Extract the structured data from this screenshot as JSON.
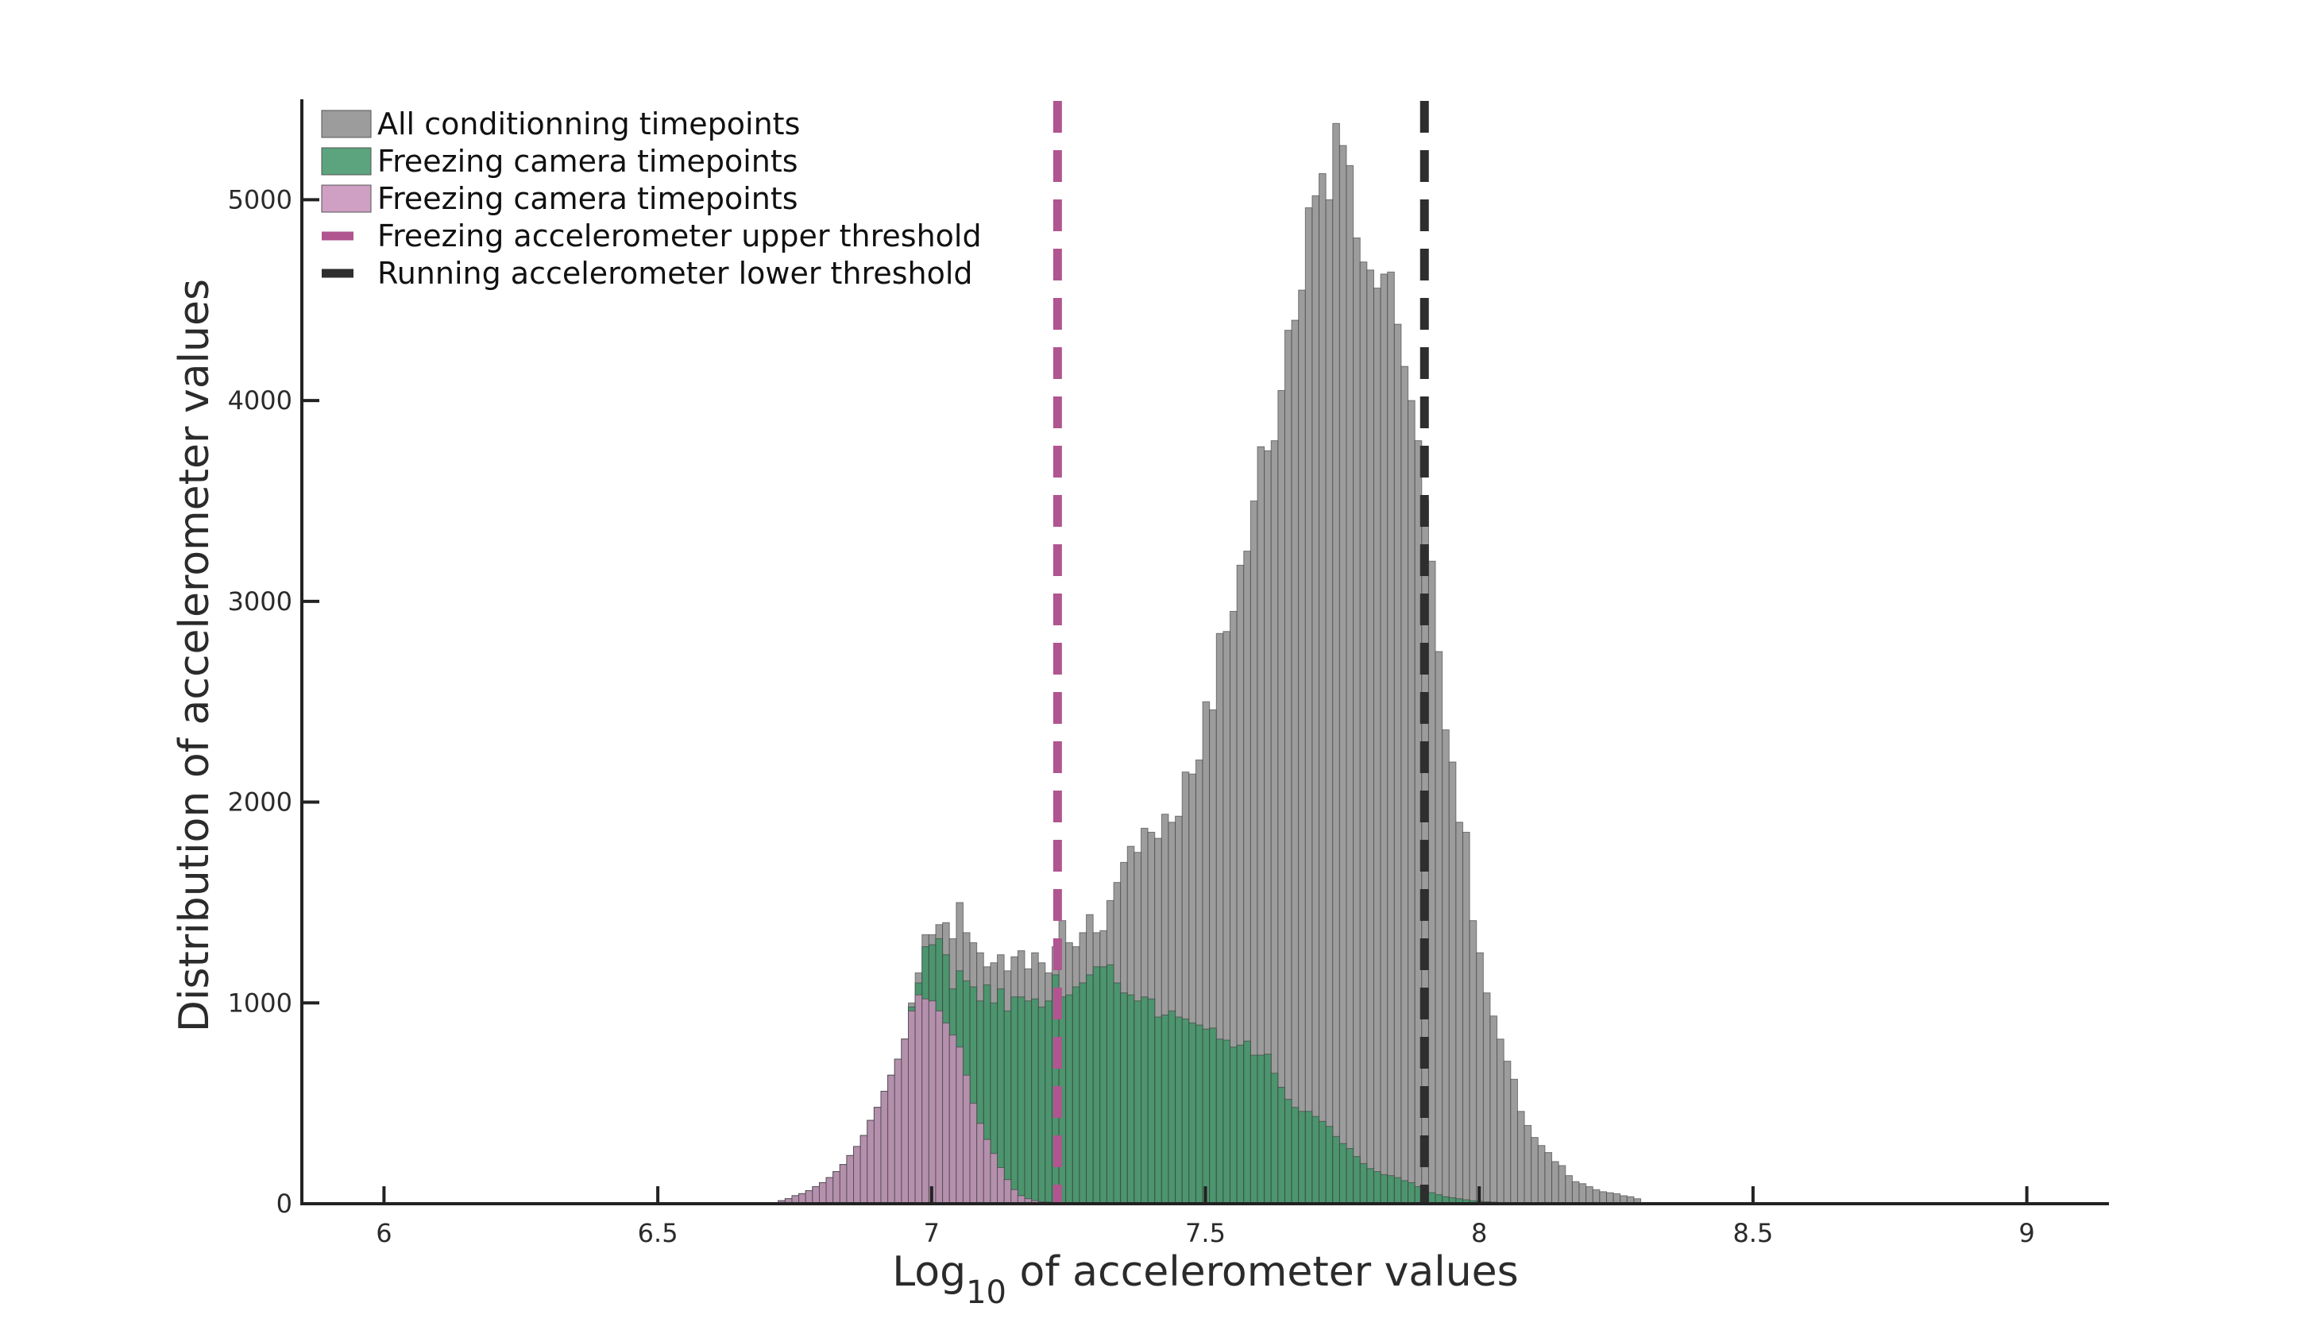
{
  "chart_data": {
    "type": "histogram",
    "title": "",
    "xlabel": {
      "main": "Log",
      "sub": "10",
      "rest": " of accelerometer values"
    },
    "ylabel": "Distribution of accelerometer values",
    "xlim": [
      5.85,
      9.15
    ],
    "ylim": [
      0,
      5500
    ],
    "x_ticks": [
      6,
      6.5,
      7,
      7.5,
      8,
      8.5,
      9
    ],
    "x_tick_labels": [
      "6",
      "6.5",
      "7",
      "7.5",
      "8",
      "8.5",
      "9"
    ],
    "y_ticks": [
      0,
      1000,
      2000,
      3000,
      4000,
      5000
    ],
    "y_tick_labels": [
      "0",
      "1000",
      "2000",
      "3000",
      "4000",
      "5000"
    ],
    "grid": false,
    "legend_position": "top-left",
    "bin_edges_range": [
      6.72,
      8.59
    ],
    "bin_width": 0.0125,
    "series": [
      {
        "name": "All conditionning timepoints",
        "kind": "bars",
        "color": "#9c9c9c",
        "values": [
          15,
          25,
          40,
          50,
          65,
          85,
          105,
          130,
          160,
          195,
          240,
          285,
          340,
          415,
          480,
          560,
          640,
          720,
          820,
          1000,
          1150,
          1340,
          1340,
          1390,
          1400,
          1320,
          1500,
          1350,
          1300,
          1250,
          1180,
          1200,
          1240,
          1160,
          1230,
          1260,
          1170,
          1250,
          1200,
          1150,
          1280,
          1410,
          1300,
          1280,
          1350,
          1440,
          1350,
          1360,
          1510,
          1600,
          1700,
          1780,
          1750,
          1870,
          1850,
          1820,
          1940,
          1900,
          1930,
          2150,
          2140,
          2210,
          2500,
          2460,
          2840,
          2850,
          2950,
          3180,
          3250,
          3500,
          3770,
          3750,
          3800,
          4050,
          4350,
          4400,
          4550,
          4960,
          5020,
          5130,
          5000,
          5380,
          5270,
          5170,
          4810,
          4690,
          4650,
          4560,
          4630,
          4640,
          4380,
          4170,
          4000,
          3800,
          3500,
          3200,
          2750,
          2360,
          2200,
          1900,
          1850,
          1410,
          1250,
          1050,
          935,
          820,
          710,
          620,
          460,
          390,
          330,
          290,
          255,
          210,
          190,
          140,
          110,
          100,
          85,
          70,
          60,
          55,
          50,
          40,
          35,
          25
        ]
      },
      {
        "name": "Freezing camera timepoints",
        "kind": "bars",
        "color": "#3e9466",
        "values": [
          15,
          25,
          40,
          50,
          65,
          85,
          105,
          130,
          160,
          195,
          240,
          285,
          340,
          415,
          480,
          560,
          640,
          720,
          820,
          980,
          1100,
          1280,
          1290,
          1320,
          1240,
          1070,
          1160,
          1110,
          1080,
          1010,
          1090,
          1000,
          1070,
          960,
          1030,
          1030,
          1010,
          1020,
          980,
          1010,
          1140,
          1030,
          1040,
          1080,
          1100,
          1140,
          1180,
          1180,
          1190,
          1100,
          1050,
          1040,
          1010,
          1030,
          1020,
          930,
          940,
          960,
          930,
          920,
          900,
          890,
          870,
          875,
          820,
          815,
          780,
          790,
          810,
          740,
          740,
          745,
          650,
          580,
          520,
          480,
          460,
          460,
          435,
          410,
          385,
          335,
          300,
          275,
          235,
          200,
          175,
          160,
          145,
          140,
          130,
          115,
          105,
          85,
          70,
          55,
          45,
          35,
          30,
          25,
          20,
          15,
          12,
          10,
          8,
          6,
          5,
          4,
          3,
          3,
          2,
          2,
          2,
          1,
          1,
          1,
          1,
          1,
          1,
          1,
          1,
          1,
          1,
          1
        ]
      },
      {
        "name": "Freezing camera timepoints",
        "kind": "bars",
        "color": "#c78fb8",
        "values": [
          15,
          25,
          40,
          50,
          65,
          85,
          105,
          130,
          160,
          195,
          240,
          285,
          340,
          415,
          480,
          560,
          640,
          720,
          820,
          960,
          1040,
          1020,
          1010,
          960,
          900,
          840,
          780,
          640,
          500,
          400,
          320,
          250,
          180,
          120,
          70,
          40,
          25,
          15,
          10,
          8,
          6,
          5,
          4,
          3,
          2,
          2,
          1,
          1,
          1,
          1,
          1,
          1,
          1,
          1,
          1,
          1,
          1,
          1,
          1,
          1,
          1,
          1,
          1,
          1,
          1,
          1,
          1,
          1,
          1,
          1,
          1,
          1,
          1,
          1,
          1,
          1,
          1,
          1,
          1,
          1,
          1,
          1,
          1,
          1,
          1,
          1,
          1,
          1,
          1,
          1,
          1,
          1,
          1,
          1,
          1,
          1,
          1,
          1,
          1,
          1,
          1,
          1,
          1,
          1,
          1,
          1,
          1,
          1,
          1,
          1,
          1,
          1,
          1,
          1,
          1,
          1,
          1,
          1,
          1,
          1,
          1,
          1,
          1,
          1,
          1
        ]
      },
      {
        "name": "Freezing accelerometer upper threshold",
        "kind": "vline",
        "color": "#b0558f",
        "x": 7.23
      },
      {
        "name": "Running accelerometer lower threshold",
        "kind": "vline",
        "color": "#2e2e2e",
        "x": 7.9
      }
    ]
  }
}
